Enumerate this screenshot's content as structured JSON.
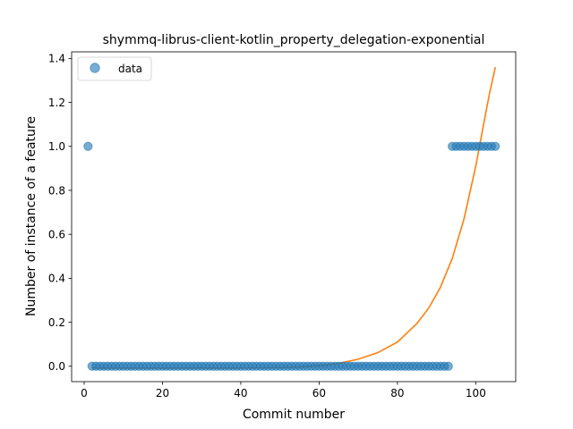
{
  "chart_data": {
    "type": "scatter",
    "title": "shymmq-librus-client-kotlin_property_delegation-exponential",
    "xlabel": "Commit number",
    "ylabel": "Number of instance of a feature",
    "xlim": [
      -3.2,
      110.2
    ],
    "ylim": [
      -0.07,
      1.43
    ],
    "xticks": [
      0,
      20,
      40,
      60,
      80,
      100
    ],
    "yticks": [
      0.0,
      0.2,
      0.4,
      0.6,
      0.8,
      1.0,
      1.2,
      1.4
    ],
    "xtick_labels": [
      "0",
      "20",
      "40",
      "60",
      "80",
      "100"
    ],
    "ytick_labels": [
      "0.0",
      "0.2",
      "0.4",
      "0.6",
      "0.8",
      "1.0",
      "1.2",
      "1.4"
    ],
    "grid": false,
    "legend": {
      "position": "upper-left",
      "entries": [
        "data"
      ]
    },
    "colors": {
      "data": "#1f77b4",
      "fit": "#ff7f0e"
    },
    "series": [
      {
        "name": "data",
        "kind": "scatter",
        "points": [
          [
            1,
            1
          ],
          [
            2,
            0
          ],
          [
            3,
            0
          ],
          [
            4,
            0
          ],
          [
            5,
            0
          ],
          [
            6,
            0
          ],
          [
            7,
            0
          ],
          [
            8,
            0
          ],
          [
            9,
            0
          ],
          [
            10,
            0
          ],
          [
            11,
            0
          ],
          [
            12,
            0
          ],
          [
            13,
            0
          ],
          [
            14,
            0
          ],
          [
            15,
            0
          ],
          [
            16,
            0
          ],
          [
            17,
            0
          ],
          [
            18,
            0
          ],
          [
            19,
            0
          ],
          [
            20,
            0
          ],
          [
            21,
            0
          ],
          [
            22,
            0
          ],
          [
            23,
            0
          ],
          [
            24,
            0
          ],
          [
            25,
            0
          ],
          [
            26,
            0
          ],
          [
            27,
            0
          ],
          [
            28,
            0
          ],
          [
            29,
            0
          ],
          [
            30,
            0
          ],
          [
            31,
            0
          ],
          [
            32,
            0
          ],
          [
            33,
            0
          ],
          [
            34,
            0
          ],
          [
            35,
            0
          ],
          [
            36,
            0
          ],
          [
            37,
            0
          ],
          [
            38,
            0
          ],
          [
            39,
            0
          ],
          [
            40,
            0
          ],
          [
            41,
            0
          ],
          [
            42,
            0
          ],
          [
            43,
            0
          ],
          [
            44,
            0
          ],
          [
            45,
            0
          ],
          [
            46,
            0
          ],
          [
            47,
            0
          ],
          [
            48,
            0
          ],
          [
            49,
            0
          ],
          [
            50,
            0
          ],
          [
            51,
            0
          ],
          [
            52,
            0
          ],
          [
            53,
            0
          ],
          [
            54,
            0
          ],
          [
            55,
            0
          ],
          [
            56,
            0
          ],
          [
            57,
            0
          ],
          [
            58,
            0
          ],
          [
            59,
            0
          ],
          [
            60,
            0
          ],
          [
            61,
            0
          ],
          [
            62,
            0
          ],
          [
            63,
            0
          ],
          [
            64,
            0
          ],
          [
            65,
            0
          ],
          [
            66,
            0
          ],
          [
            67,
            0
          ],
          [
            68,
            0
          ],
          [
            69,
            0
          ],
          [
            70,
            0
          ],
          [
            71,
            0
          ],
          [
            72,
            0
          ],
          [
            73,
            0
          ],
          [
            74,
            0
          ],
          [
            75,
            0
          ],
          [
            76,
            0
          ],
          [
            77,
            0
          ],
          [
            78,
            0
          ],
          [
            79,
            0
          ],
          [
            80,
            0
          ],
          [
            81,
            0
          ],
          [
            82,
            0
          ],
          [
            83,
            0
          ],
          [
            84,
            0
          ],
          [
            85,
            0
          ],
          [
            86,
            0
          ],
          [
            87,
            0
          ],
          [
            88,
            0
          ],
          [
            89,
            0
          ],
          [
            90,
            0
          ],
          [
            91,
            0
          ],
          [
            92,
            0
          ],
          [
            93,
            0
          ],
          [
            94,
            1
          ],
          [
            95,
            1
          ],
          [
            96,
            1
          ],
          [
            97,
            1
          ],
          [
            98,
            1
          ],
          [
            99,
            1
          ],
          [
            100,
            1
          ],
          [
            101,
            1
          ],
          [
            102,
            1
          ],
          [
            103,
            1
          ],
          [
            104,
            1
          ],
          [
            105,
            1
          ]
        ]
      },
      {
        "kind": "line",
        "fit": "exponential",
        "points": [
          [
            2,
            -0.0085
          ],
          [
            10,
            -0.0085
          ],
          [
            20,
            -0.0085
          ],
          [
            30,
            -0.0084
          ],
          [
            40,
            -0.008
          ],
          [
            50,
            -0.0065
          ],
          [
            55,
            -0.0035
          ],
          [
            60,
            0.0025
          ],
          [
            65,
            0.013
          ],
          [
            70,
            0.032
          ],
          [
            75,
            0.062
          ],
          [
            80,
            0.11
          ],
          [
            85,
            0.195
          ],
          [
            88,
            0.265
          ],
          [
            91,
            0.36
          ],
          [
            94,
            0.49
          ],
          [
            97,
            0.67
          ],
          [
            100,
            0.91
          ],
          [
            102,
            1.1
          ],
          [
            103.5,
            1.24
          ],
          [
            105,
            1.36
          ]
        ]
      }
    ]
  }
}
